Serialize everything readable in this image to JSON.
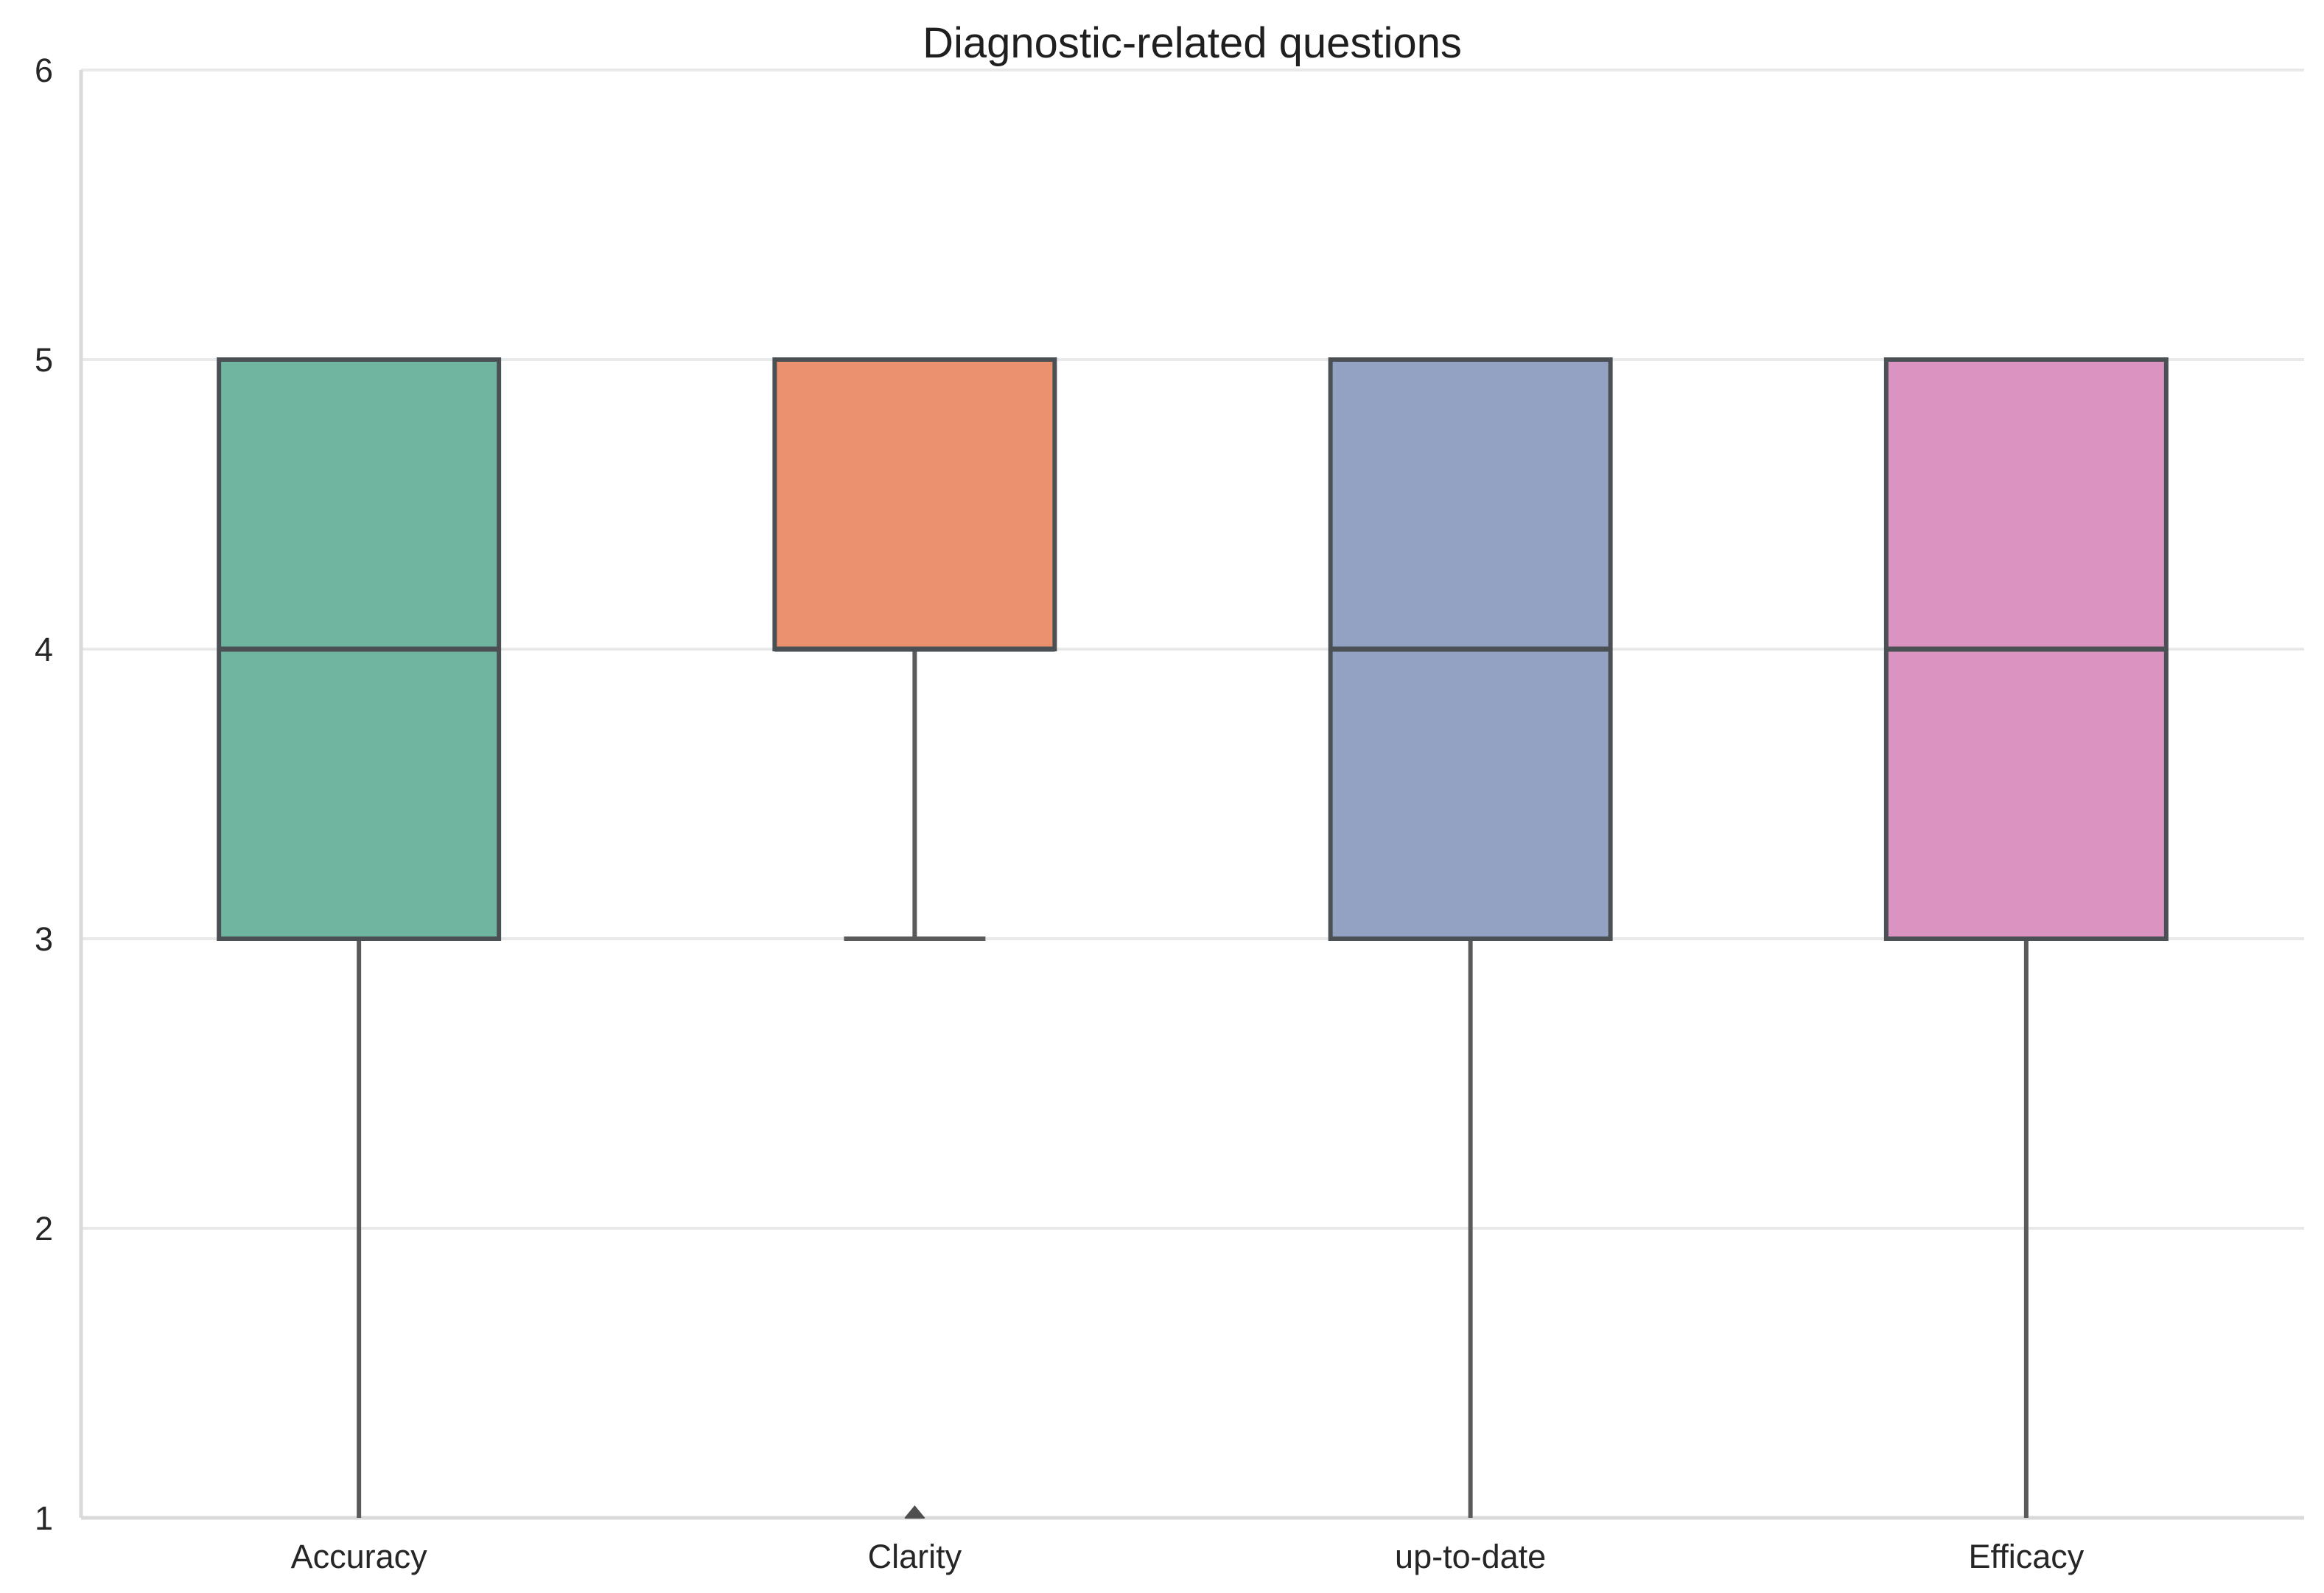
{
  "chart_data": {
    "type": "boxplot",
    "title": "Diagnostic-related questions",
    "categories": [
      "Accuracy",
      "Clarity",
      "up-to-date",
      "Efficacy"
    ],
    "series": [
      {
        "name": "Accuracy",
        "whisker_low": 1,
        "q1": 3,
        "median": 4,
        "q3": 5,
        "whisker_high": 5,
        "outliers": [],
        "color": "#6FB5A0"
      },
      {
        "name": "Clarity",
        "whisker_low": 3,
        "q1": 4,
        "median": 4,
        "q3": 5,
        "whisker_high": 5,
        "outliers": [
          1
        ],
        "color": "#EC9170"
      },
      {
        "name": "up-to-date",
        "whisker_low": 1,
        "q1": 3,
        "median": 4,
        "q3": 5,
        "whisker_high": 5,
        "outliers": [],
        "color": "#93A2C2"
      },
      {
        "name": "Efficacy",
        "whisker_low": 1,
        "q1": 3,
        "median": 4,
        "q3": 5,
        "whisker_high": 5,
        "outliers": [],
        "color": "#DB94C1"
      }
    ],
    "xlabel": "",
    "ylabel": "",
    "ylim": [
      1,
      6
    ],
    "yticks": [
      1,
      2,
      3,
      4,
      5,
      6
    ],
    "grid": true,
    "legend": "none",
    "style_colors": {
      "box_edge": "#4b5054",
      "median_line": "#4b5054",
      "whisker": "#5a5a5a",
      "outlier": "#4f4f4f",
      "gridline": "#e9e9e9",
      "spine": "#dadada",
      "text": "#262626",
      "background": "#ffffff"
    }
  }
}
